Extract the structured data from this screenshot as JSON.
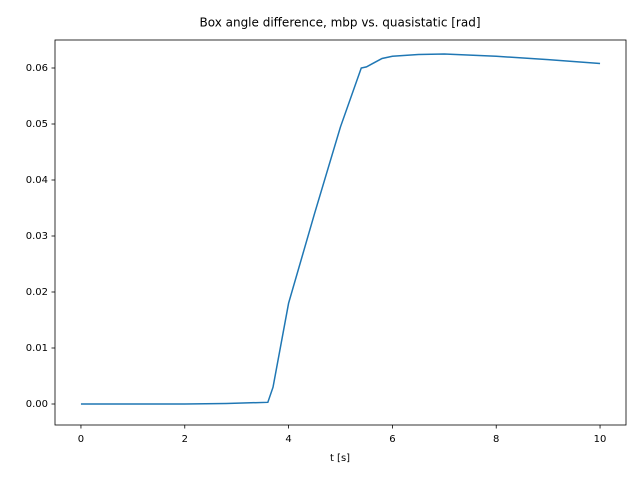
{
  "chart_data": {
    "type": "line",
    "title": "Box angle difference, mbp vs. quasistatic [rad]",
    "x_label": "t [s]",
    "x": [
      0,
      2,
      2.8,
      3.6,
      3.7,
      4,
      4.5,
      5,
      5.4,
      5.5,
      5.6,
      5.8,
      6,
      6.5,
      7,
      8,
      9,
      10
    ],
    "series": [
      {
        "color": "#1f77b4",
        "values": [
          0,
          0,
          0.0001,
          0.0003,
          0.003,
          0.018,
          0.034,
          0.0495,
          0.06,
          0.0602,
          0.0607,
          0.0617,
          0.0621,
          0.0624,
          0.0625,
          0.0621,
          0.0615,
          0.0608
        ]
      }
    ],
    "xlim": [
      -0.5,
      10.5
    ],
    "ylim": [
      -0.00375,
      0.065
    ],
    "xticks": [
      0,
      2,
      4,
      6,
      8,
      10
    ],
    "yticks": [
      {
        "value": 0,
        "label": "0.00"
      },
      0.01,
      0.02,
      0.03,
      0.04,
      0.05,
      0.06
    ],
    "grid": false
  }
}
